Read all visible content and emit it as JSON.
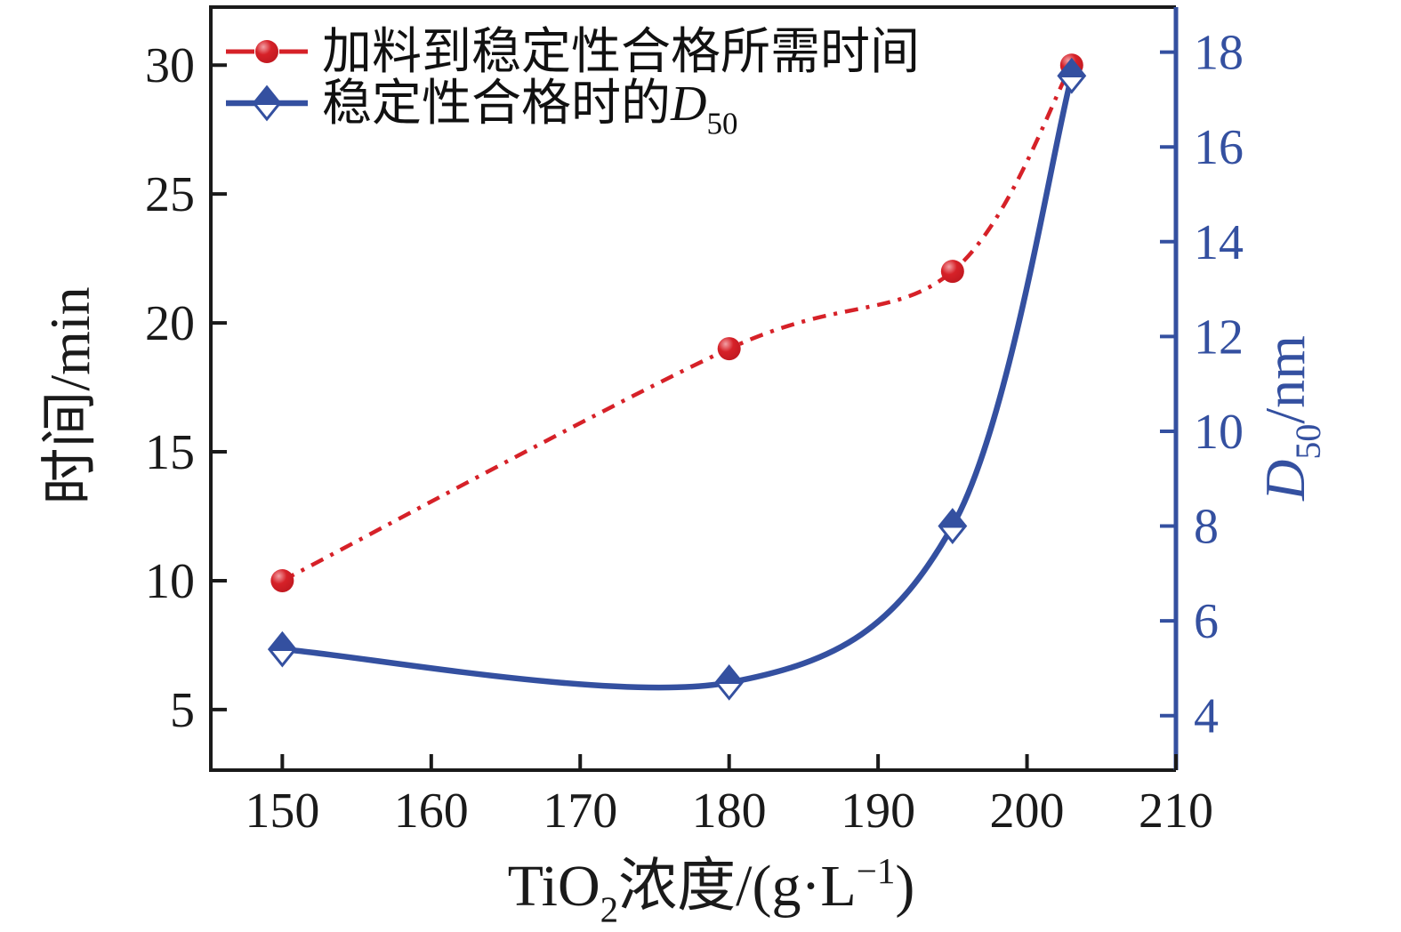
{
  "chart_data": {
    "type": "line",
    "title": "",
    "x": [
      150,
      180,
      195,
      203
    ],
    "series": [
      {
        "name": "加料到稳定性合格所需时间",
        "axis": "left",
        "values": [
          10,
          19,
          22,
          30
        ],
        "color": "#d62128",
        "line_style": "dash-dot",
        "marker": "sphere-circle"
      },
      {
        "name": "稳定性合格时的D50",
        "name_segments": [
          {
            "t": "稳定性合格时的"
          },
          {
            "t": "D",
            "italic": true
          },
          {
            "t": "50",
            "sub": true
          }
        ],
        "axis": "right",
        "values": [
          5.4,
          4.7,
          8.0,
          17.5
        ],
        "color": "#3450a0",
        "line_style": "solid",
        "marker": "half-filled-diamond"
      }
    ],
    "xlabel": "TiO2浓度/(g·L−1)",
    "xlabel_segments": [
      {
        "t": "TiO"
      },
      {
        "t": "2",
        "sub": true
      },
      {
        "t": "浓度/(g·L"
      },
      {
        "t": "−1",
        "sup": true
      },
      {
        "t": ")"
      }
    ],
    "ylabel_left": "时间/min",
    "ylabel_right": "D50/nm",
    "ylabel_right_segments": [
      {
        "t": "D",
        "italic": true
      },
      {
        "t": "50",
        "sub": true
      },
      {
        "t": "/nm"
      }
    ],
    "x_ticks": [
      150,
      160,
      170,
      180,
      190,
      200,
      210
    ],
    "y_ticks_left": [
      5,
      10,
      15,
      20,
      25,
      30
    ],
    "y_ticks_right": [
      4,
      6,
      8,
      10,
      12,
      14,
      16,
      18
    ],
    "xlim": [
      145.2,
      210
    ],
    "ylim_left": [
      2.65,
      32.25
    ],
    "ylim_right": [
      2.85,
      18.95
    ],
    "grid": false,
    "legend_position": "top-left",
    "colors": {
      "left_axis": "#1a1a1a",
      "right_axis": "#3450a0",
      "series_red": "#d62128",
      "series_red_highlight": "#f2a0a5",
      "series_blue": "#3450a0",
      "background": "#ffffff"
    }
  }
}
